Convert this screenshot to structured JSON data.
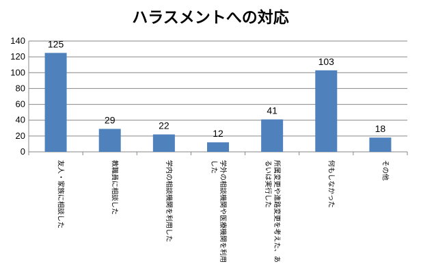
{
  "chart_data": {
    "type": "bar",
    "title": "ハラスメントへの対応",
    "categories": [
      [
        "友人・家族に相談した"
      ],
      [
        "教職員に相談した"
      ],
      [
        "学内の相談機関を利用した"
      ],
      [
        "学外の相談機関や医療機関を利用",
        "した"
      ],
      [
        "所属変更や進路変更を考えた、あ",
        "るいは実行した"
      ],
      [
        "何もしなかった"
      ],
      [
        "その他"
      ]
    ],
    "values": [
      125,
      29,
      22,
      12,
      41,
      103,
      18
    ],
    "data_labels": [
      "125",
      "29",
      "22",
      "12",
      "41",
      "103",
      "18"
    ],
    "ylim": [
      0,
      140
    ],
    "yticks": [
      0,
      20,
      40,
      60,
      80,
      100,
      120,
      140
    ],
    "grid": true,
    "legend": "none",
    "colors": {
      "bar": "#4f81bd",
      "grid": "#868686",
      "axis": "#868686"
    }
  }
}
